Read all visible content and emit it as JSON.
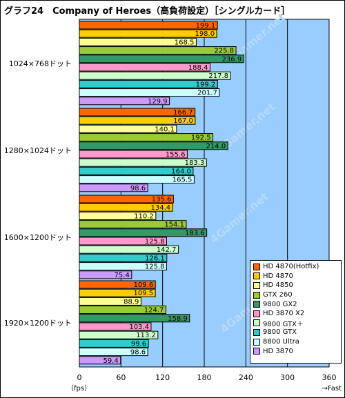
{
  "chart_data": {
    "type": "bar",
    "title": "グラフ24　Company of Heroes（高負荷設定）［シングルカード］",
    "xlabel_left": "（fps）",
    "xlabel_right": "→Fast",
    "xlim": [
      0,
      360
    ],
    "xticks": [
      0,
      60,
      120,
      180,
      240,
      300,
      360
    ],
    "background_color": "#99ccff",
    "groups": [
      "1024×768ドット",
      "1280×1024ドット",
      "1600×1200ドット",
      "1920×1200ドット"
    ],
    "series": [
      {
        "name": "HD 4870(Hotfix)",
        "color": "#ff6600",
        "values": [
          199.1,
          166.7,
          135.6,
          109.6
        ]
      },
      {
        "name": "HD 4870",
        "color": "#ffcc00",
        "values": [
          198.0,
          167.0,
          134.4,
          109.5
        ]
      },
      {
        "name": "HD 4850",
        "color": "#ffff99",
        "values": [
          168.5,
          140.1,
          110.2,
          88.9
        ]
      },
      {
        "name": "GTX 260",
        "color": "#99cc33",
        "values": [
          225.8,
          192.5,
          154.1,
          124.7
        ]
      },
      {
        "name": "9800 GX2",
        "color": "#339966",
        "values": [
          236.9,
          214.0,
          183.6,
          158.9
        ]
      },
      {
        "name": "HD 3870 X2",
        "color": "#ff99cc",
        "values": [
          188.4,
          155.6,
          125.8,
          103.4
        ]
      },
      {
        "name": "9800 GTX＋",
        "color": "#ccffcc",
        "values": [
          217.8,
          183.3,
          142.7,
          113.2
        ]
      },
      {
        "name": "9800 GTX",
        "color": "#33cccc",
        "values": [
          199.2,
          164.0,
          126.1,
          99.6
        ]
      },
      {
        "name": "8800 Ultra",
        "color": "#ccffff",
        "values": [
          201.7,
          165.5,
          125.8,
          98.6
        ]
      },
      {
        "name": "HD 3870",
        "color": "#cc99ff",
        "values": [
          129.9,
          98.6,
          75.4,
          59.4
        ]
      }
    ],
    "value_labels": [
      [
        "199.1",
        "198.0",
        "168.5",
        "225.8",
        "236.9",
        "188.4",
        "217.8",
        "199.2",
        "201.7",
        "129.9"
      ],
      [
        "166.7",
        "167.0",
        "140.1",
        "192.5",
        "214.0",
        "155.6",
        "183.3",
        "164.0",
        "165.5",
        "98.6"
      ],
      [
        "135.6",
        "134.4",
        "110.2",
        "154.1",
        "183.6",
        "125.8",
        "142.7",
        "126.1",
        "125.8",
        "75.4"
      ],
      [
        "109.6",
        "109.5",
        "88.9",
        "124.7",
        "158.9",
        "103.4",
        "113.2",
        "99.6",
        "98.6",
        "59.4"
      ]
    ],
    "legend_position": "bottom-right",
    "grid": true,
    "watermark": "4Gamer.net"
  }
}
